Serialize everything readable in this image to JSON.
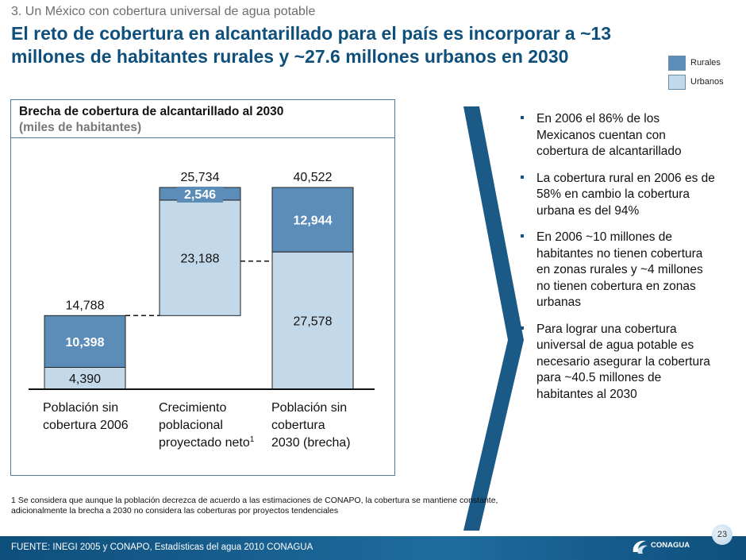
{
  "header": {
    "section": "3. Un México con cobertura universal de agua potable",
    "title": "El reto de cobertura en alcantarillado para el país es incorporar a ~13 millones de habitantes rurales y ~27.6 millones urbanos en 2030"
  },
  "legend": {
    "items": [
      {
        "label": "Rurales",
        "color": "#5b8db8"
      },
      {
        "label": "Urbanos",
        "color": "#c3d9ea"
      }
    ]
  },
  "chart_data": {
    "type": "bar",
    "title": "Brecha de cobertura de alcantarillado al 2030",
    "subtitle": "(miles de habitantes)",
    "categories": [
      "Población sin cobertura 2006",
      "Crecimiento poblacional proyectado neto",
      "Población sin cobertura 2030 (brecha)"
    ],
    "category_lines": [
      [
        "Población sin",
        "cobertura 2006"
      ],
      [
        "Crecimiento",
        "poblacional",
        "proyectado neto"
      ],
      [
        "Población sin",
        "cobertura",
        "2030 (brecha)"
      ]
    ],
    "footnote_marker": "1",
    "variant": "waterfall",
    "series": [
      {
        "name": "Urbanos",
        "values": [
          4390,
          23188,
          27578
        ],
        "color": "#c3d9ea"
      },
      {
        "name": "Rurales",
        "values": [
          10398,
          2546,
          12944
        ],
        "color": "#5b8db8"
      }
    ],
    "value_labels": {
      "Urbanos": [
        "4,390",
        "23,188",
        "27,578"
      ],
      "Rurales": [
        "10,398",
        "2,546",
        "12,944"
      ]
    },
    "totals": [
      14788,
      25734,
      40522
    ],
    "total_labels": [
      "14,788",
      "25,734",
      "40,522"
    ],
    "ylim": [
      0,
      40522
    ]
  },
  "bullets": [
    "En 2006 el 86% de los Mexicanos cuentan con cobertura de alcantarillado",
    "La cobertura rural en 2006 es de 58% en cambio la cobertura urbana es del 94%",
    "En 2006 ~10 millones de habitantes no tienen cobertura en zonas rurales y ~4 millones no tienen cobertura en zonas urbanas",
    "Para lograr una cobertura universal de agua potable es necesario asegurar la cobertura para ~40.5 millones de habitantes al 2030"
  ],
  "footnote": "1 Se considera que aunque la población decrezca de acuerdo a las estimaciones de CONAPO, la cobertura se mantiene constante, adicionalmente la brecha a 2030 no considera las coberturas por proyectos tendenciales",
  "footer": {
    "source": "FUENTE: INEGI 2005 y CONAPO, Estadísticas del agua 2010 CONAGUA",
    "page_number": "23",
    "logo": "CONAGUA"
  }
}
